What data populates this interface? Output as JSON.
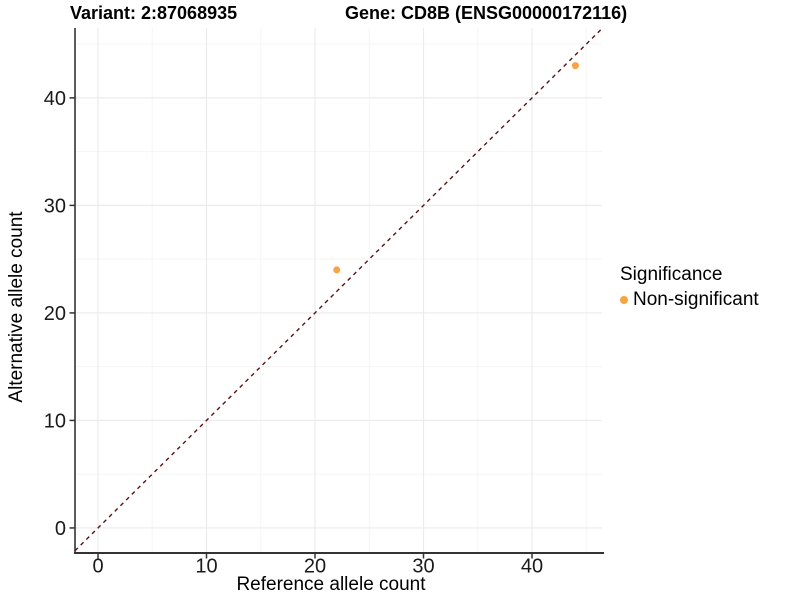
{
  "header": {
    "variant_title": "Variant: 2:87068935",
    "gene_title": "Gene: CD8B (ENSG00000172116)"
  },
  "axes": {
    "x_label": "Reference allele count",
    "y_label": "Alternative allele count"
  },
  "legend": {
    "title": "Significance",
    "items": [
      {
        "label": "Non-significant",
        "color": "#F9A440",
        "marker": "dot-icon"
      }
    ]
  },
  "colors": {
    "background": "#FFFFFF",
    "grid_major": "#EBEBEB",
    "grid_minor": "#F5F5F5",
    "axis_line": "#333333",
    "tick_text": "#1A1A1A",
    "point": "#F9A440",
    "ref_line": "#5A1212"
  },
  "chart_data": {
    "type": "scatter",
    "title_left": "Variant: 2:87068935",
    "title_right": "Gene: CD8B (ENSG00000172116)",
    "xlabel": "Reference allele count",
    "ylabel": "Alternative allele count",
    "x_ticks": [
      0,
      10,
      20,
      30,
      40
    ],
    "y_ticks": [
      0,
      10,
      20,
      30,
      40
    ],
    "x_minor_ticks": [
      5,
      15,
      25,
      35,
      45
    ],
    "y_minor_ticks": [
      5,
      15,
      25,
      35,
      45
    ],
    "xlim": [
      -2.12,
      46.45
    ],
    "ylim": [
      -2.33,
      46.5
    ],
    "grid": "major+minor",
    "legend_position": "right",
    "series": [
      {
        "name": "Non-significant",
        "color": "#F9A440",
        "points": [
          {
            "x": 22,
            "y": 24
          },
          {
            "x": 44,
            "y": 43
          }
        ]
      }
    ],
    "reference_line": {
      "kind": "identity y=x",
      "style": "dashed",
      "color": "#5A1212"
    }
  }
}
